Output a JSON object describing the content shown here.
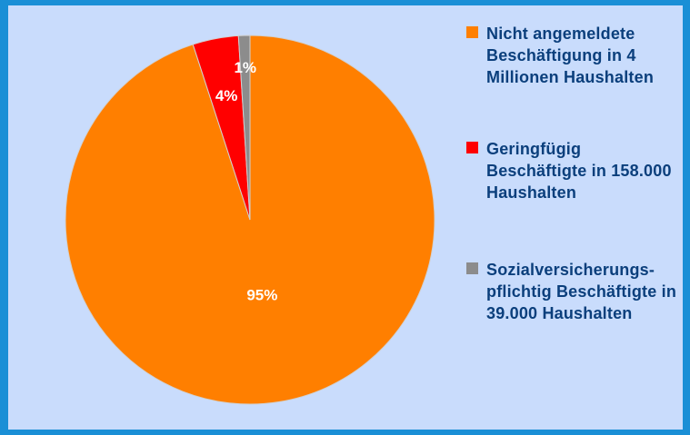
{
  "chart_data": {
    "type": "pie",
    "categories": [
      "Nicht angemeldete Beschäftigung in 4 Millionen Haushalten",
      "Geringfügig Beschäftigte in 158.000 Haushalten",
      "Sozialversicherungs-pflichtig Beschäftigte in 39.000 Haushalten"
    ],
    "values": [
      95,
      4,
      1
    ],
    "value_labels": [
      "95%",
      "4%",
      "1%"
    ],
    "colors": [
      "#ff7f00",
      "#ff0000",
      "#8c8c8c"
    ]
  }
}
